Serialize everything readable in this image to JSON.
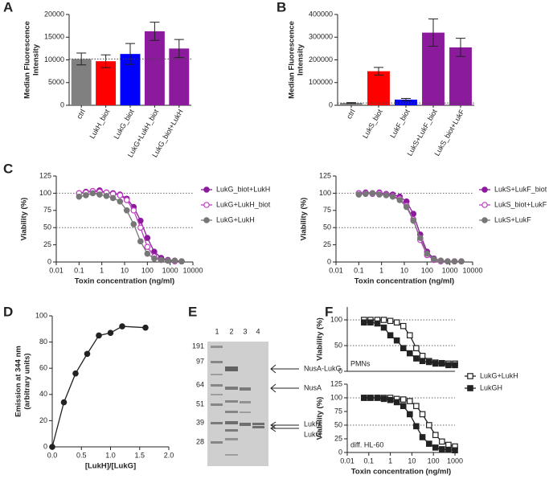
{
  "panel_labels": [
    "A",
    "B",
    "C",
    "D",
    "E",
    "F"
  ],
  "chart_data": [
    {
      "type": "bar",
      "ylabel": [
        "Median Fluorescence",
        "Intensity"
      ],
      "categories": [
        "ctrl",
        "LukH_biot",
        "LukG_biot",
        "LukG+LukH_biot",
        "LukG_biot+LukH"
      ],
      "values": [
        10200,
        9700,
        11300,
        16300,
        12500
      ],
      "errors": [
        1300,
        1400,
        2300,
        2000,
        2000
      ],
      "colors": [
        "#808080",
        "#ff0000",
        "#0000ff",
        "#8b1a9c",
        "#8b1a9c"
      ],
      "ylim": [
        0,
        20000
      ],
      "yticks": [
        0,
        5000,
        10000,
        15000,
        20000
      ]
    },
    {
      "type": "bar",
      "ylabel": [
        "Median Fluorescence",
        "Intensity"
      ],
      "categories": [
        "ctrl",
        "LukS_biot",
        "LukF_biot",
        "LukS+LukF_biot",
        "LukS_biot+LukF"
      ],
      "values": [
        10000,
        150000,
        25000,
        320000,
        255000
      ],
      "errors": [
        2000,
        17000,
        5000,
        60000,
        40000
      ],
      "colors": [
        "#808080",
        "#ff0000",
        "#0000ff",
        "#8b1a9c",
        "#8b1a9c"
      ],
      "ylim": [
        0,
        400000
      ],
      "yticks": [
        0,
        100000,
        200000,
        300000,
        400000
      ]
    },
    {
      "type": "line",
      "xscale": "log",
      "ylabel": [
        "Viability (%)"
      ],
      "xlabel": "Toxin concentration (ng/ml)",
      "x": [
        0.1,
        0.2,
        0.4,
        0.8,
        1.6,
        3.1,
        6.3,
        12.5,
        25,
        50,
        100,
        200,
        400,
        800,
        1600,
        3200
      ],
      "series": [
        {
          "name": "LukG_biot+LukH",
          "color": "#8b1a9c",
          "marker": "circle",
          "values": [
            100,
            102,
            103,
            104,
            101,
            100,
            98,
            92,
            80,
            60,
            35,
            15,
            6,
            3,
            2,
            1
          ]
        },
        {
          "name": "LukG+LukH_biot",
          "color": "#c03cc6",
          "marker": "open-circle",
          "values": [
            100,
            101,
            103,
            102,
            101,
            99,
            97,
            90,
            75,
            50,
            22,
            8,
            3,
            2,
            1,
            1
          ]
        },
        {
          "name": "LukG+LukH",
          "color": "#777777",
          "marker": "circle",
          "values": [
            95,
            97,
            100,
            98,
            96,
            93,
            88,
            75,
            55,
            30,
            12,
            5,
            3,
            2,
            2,
            1
          ]
        }
      ],
      "xlim": [
        0.01,
        10000
      ],
      "xticks": [
        0.01,
        0.1,
        1,
        10,
        100,
        1000,
        10000
      ],
      "ylim": [
        0,
        125
      ],
      "yticks": [
        0,
        25,
        50,
        75,
        100,
        125
      ],
      "ref_lines": [
        50,
        100
      ],
      "legend": "right"
    },
    {
      "type": "line",
      "xscale": "log",
      "ylabel": [
        "Viability (%)"
      ],
      "xlabel": "Toxin concentration (ng/ml)",
      "x": [
        0.1,
        0.2,
        0.4,
        0.8,
        1.6,
        3.1,
        6.3,
        12.5,
        25,
        50,
        100,
        200,
        400,
        800,
        1600,
        3200
      ],
      "series": [
        {
          "name": "LukS+LukF_biot",
          "color": "#8b1a9c",
          "marker": "circle",
          "values": [
            100,
            101,
            100,
            101,
            99,
            98,
            95,
            88,
            70,
            40,
            15,
            5,
            2,
            1,
            1,
            1
          ]
        },
        {
          "name": "LukS_biot+LukF",
          "color": "#c03cc6",
          "marker": "open-circle",
          "values": [
            100,
            100,
            99,
            100,
            98,
            96,
            92,
            82,
            62,
            32,
            10,
            3,
            1,
            1,
            1,
            1
          ]
        },
        {
          "name": "LukS+LukF",
          "color": "#777777",
          "marker": "circle",
          "values": [
            98,
            99,
            100,
            98,
            97,
            95,
            90,
            80,
            60,
            35,
            12,
            4,
            2,
            1,
            1,
            1
          ]
        }
      ],
      "xlim": [
        0.01,
        10000
      ],
      "xticks": [
        0.01,
        0.1,
        1,
        10,
        100,
        1000,
        10000
      ],
      "ylim": [
        0,
        125
      ],
      "yticks": [
        0,
        25,
        50,
        75,
        100,
        125
      ],
      "ref_lines": [
        50,
        100
      ],
      "legend": "right"
    },
    {
      "type": "line",
      "ylabel": [
        "Emission at 344 nm",
        "(arbitrary units)"
      ],
      "xlabel": "[LukH]/[LukG]",
      "x": [
        0,
        0.2,
        0.4,
        0.6,
        0.8,
        1.0,
        1.2,
        1.6
      ],
      "series": [
        {
          "color": "#222222",
          "marker": "circle",
          "values": [
            0,
            34,
            56,
            71,
            85,
            87,
            92,
            91
          ]
        }
      ],
      "xlim": [
        0,
        2
      ],
      "xticks": [
        {
          "value": 0,
          "label": "0.0"
        },
        {
          "value": 0.5,
          "label": "0.5"
        },
        {
          "value": 1,
          "label": "1.0"
        },
        {
          "value": 1.5,
          "label": "1.5"
        },
        {
          "value": 2,
          "label": "2.0"
        }
      ],
      "ylim": [
        0,
        100
      ],
      "yticks": [
        0,
        20,
        40,
        60,
        80,
        100
      ]
    },
    {
      "type": "line",
      "xscale": "log",
      "ylabel": [
        "Viability (%)"
      ],
      "annotation": "PMNs",
      "x": [
        0.06,
        0.12,
        0.25,
        0.5,
        1,
        2,
        4,
        8,
        16,
        31,
        63,
        125,
        250,
        500,
        1000
      ],
      "series": [
        {
          "name": "LukG+LukH",
          "color": "#222222",
          "marker": "open-square",
          "values": [
            100,
            100,
            100,
            100,
            98,
            95,
            88,
            70,
            45,
            30,
            20,
            17,
            16,
            15,
            15
          ]
        },
        {
          "name": "LukGH",
          "color": "#222222",
          "marker": "square",
          "values": [
            95,
            95,
            93,
            85,
            70,
            60,
            45,
            35,
            25,
            20,
            18,
            15,
            15,
            12,
            12
          ]
        }
      ],
      "xlim": [
        0.01,
        1000
      ],
      "ylim": [
        0,
        125
      ],
      "yticks": [
        0,
        50,
        100
      ],
      "ref_lines": [
        50,
        100
      ],
      "legend": "right"
    },
    {
      "type": "line",
      "xscale": "log",
      "ylabel": [
        "Viability (%)"
      ],
      "xlabel": "Toxin concentration (ng/ml)",
      "annotation": "diff. HL-60",
      "x": [
        0.06,
        0.12,
        0.25,
        0.5,
        1,
        2,
        4,
        8,
        16,
        31,
        63,
        125,
        250,
        500,
        1000
      ],
      "series": [
        {
          "color": "#222222",
          "marker": "open-square",
          "values": [
            100,
            100,
            100,
            100,
            100,
            98,
            97,
            94,
            85,
            70,
            50,
            32,
            20,
            14,
            11
          ]
        },
        {
          "color": "#222222",
          "marker": "square",
          "values": [
            100,
            100,
            100,
            98,
            96,
            92,
            85,
            70,
            48,
            28,
            16,
            9,
            6,
            5,
            4
          ]
        }
      ],
      "xlim": [
        0.01,
        1000
      ],
      "xticks": [
        0.01,
        0.1,
        1,
        10,
        100,
        1000
      ],
      "ylim": [
        0,
        125
      ],
      "yticks": [
        0,
        25,
        50,
        75,
        100,
        125
      ],
      "ref_lines": [
        50,
        100
      ]
    }
  ],
  "gel": {
    "lanes": [
      "1",
      "2",
      "3",
      "4"
    ],
    "markers": [
      "191",
      "97",
      "64",
      "51",
      "39",
      "28"
    ],
    "bands": [
      "NusA-LukG",
      "NusA",
      "LukH",
      "LukG"
    ]
  }
}
